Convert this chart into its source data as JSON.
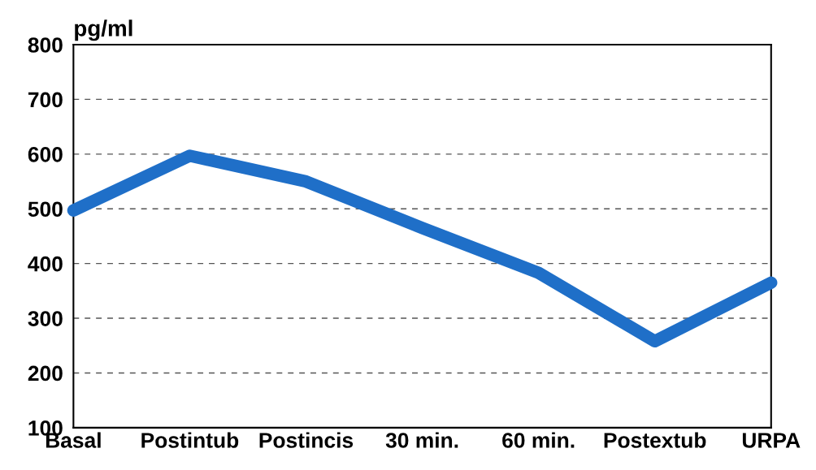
{
  "chart_data": {
    "type": "line",
    "ylabel": "pg/ml",
    "categories": [
      "Basal",
      "Postintub",
      "Postincis",
      "30 min.",
      "60 min.",
      "Postextub",
      "URPA"
    ],
    "series": [
      {
        "color": "#1f6fc8",
        "values": [
          497,
          597,
          550,
          465,
          383,
          258,
          365
        ]
      }
    ],
    "ylim": [
      100,
      800
    ],
    "yticks": [
      100,
      200,
      300,
      400,
      500,
      600,
      700,
      800
    ],
    "grid": "y",
    "line_style": "solid"
  }
}
